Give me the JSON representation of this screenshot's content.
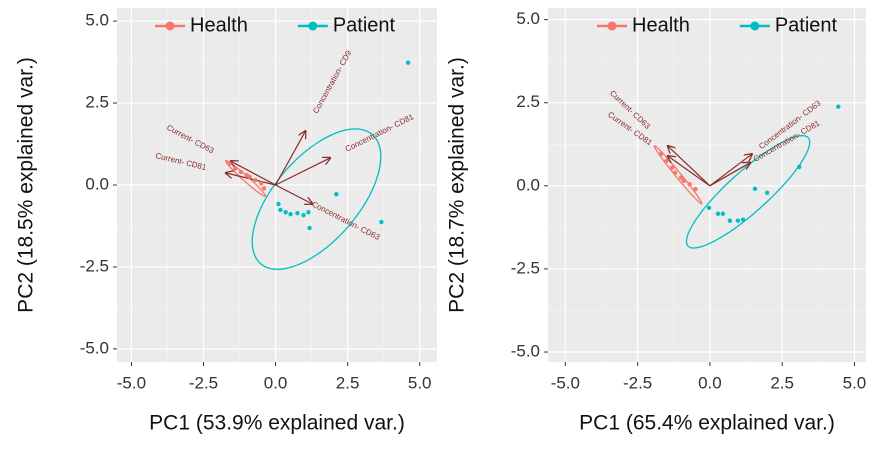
{
  "chart_data": [
    {
      "type": "scatter",
      "x_label": "PC1 (53.9% explained var.)",
      "y_label": "PC2 (18.5% explained var.)",
      "xlim": [
        -5.5,
        5.6
      ],
      "ylim": [
        -5.4,
        5.4
      ],
      "xticks": [
        {
          "value": -5,
          "label": "-5.0"
        },
        {
          "value": -2.5,
          "label": "-2.5"
        },
        {
          "value": 0,
          "label": "0.0"
        },
        2.5,
        {
          "value": 5,
          "label": "5.0"
        }
      ],
      "yticks": [
        {
          "value": -5,
          "label": "-5.0"
        },
        {
          "value": -2.5,
          "label": "-2.5"
        },
        {
          "value": 0,
          "label": "0.0"
        },
        2.5,
        {
          "value": 5,
          "label": "5.0"
        }
      ],
      "grid": true,
      "legend": "top",
      "loading_color": "#8b2a2a",
      "series": [
        {
          "name": "Health",
          "color": "#f8766d",
          "x": [
            -1.6,
            -1.4,
            -1.2,
            -1.0,
            -0.9,
            -0.7,
            -0.5,
            -0.4
          ],
          "y": [
            0.65,
            0.5,
            0.4,
            0.3,
            0.25,
            0.15,
            0.05,
            -0.1
          ],
          "ellipse": {
            "center": [
              -1.04,
              0.2
            ],
            "axis1": [
              0.69,
              -0.54
            ],
            "axis2": [
              0.05,
              0.07
            ]
          }
        },
        {
          "name": "Patient",
          "color": "#00bfc4",
          "x": [
            4.6,
            2.11,
            3.67,
            0.1,
            0.17,
            0.35,
            0.52,
            0.76,
            0.97,
            1.14,
            1.18
          ],
          "y": [
            3.73,
            -0.28,
            -1.13,
            -0.58,
            -0.76,
            -0.83,
            -0.89,
            -0.86,
            -0.92,
            -0.83,
            -1.31
          ],
          "ellipse": {
            "center": [
              1.42,
              -0.43
            ],
            "axis1": [
              1.94,
              1.97
            ],
            "axis2": [
              1.1,
              -0.84
            ]
          }
        }
      ],
      "loadings": [
        {
          "label": "Concentration- CD9",
          "x": 1.04,
          "y": 1.65
        },
        {
          "label": "Concentration- CD81",
          "x": 1.9,
          "y": 0.83
        },
        {
          "label": "Concentration- CD63",
          "x": 1.28,
          "y": -0.58
        },
        {
          "label": "Current- CD63",
          "x": -1.56,
          "y": 0.73
        },
        {
          "label": "Current- CD81",
          "x": -1.73,
          "y": 0.37
        }
      ]
    },
    {
      "type": "scatter",
      "x_label": "PC1 (65.4% explained var.)",
      "y_label": "PC2 (18.7% explained var.)",
      "xlim": [
        -5.6,
        5.4
      ],
      "ylim": [
        -5.3,
        5.35
      ],
      "xticks": [
        {
          "value": -5,
          "label": "-5.0"
        },
        {
          "value": -2.5,
          "label": "-2.5"
        },
        {
          "value": 0,
          "label": "0.0"
        },
        2.5,
        {
          "value": 5,
          "label": "5.0"
        }
      ],
      "yticks": [
        {
          "value": -5,
          "label": "-5.0"
        },
        {
          "value": -2.5,
          "label": "-2.5"
        },
        {
          "value": 0,
          "label": "0.0"
        },
        2.5,
        {
          "value": 5,
          "label": "5.0"
        }
      ],
      "grid": true,
      "legend": "top",
      "loading_color": "#8b2a2a",
      "series": [
        {
          "name": "Health",
          "color": "#f8766d",
          "x": [
            -1.7,
            -1.5,
            -1.3,
            -1.2,
            -1.0,
            -0.9,
            -0.7,
            -0.5
          ],
          "y": [
            0.95,
            0.75,
            0.55,
            0.4,
            0.25,
            0.15,
            0.05,
            -0.1
          ],
          "ellipse": {
            "center": [
              -1.1,
              0.33
            ],
            "axis1": [
              0.82,
              -0.87
            ],
            "axis2": [
              0.06,
              0.06
            ]
          }
        },
        {
          "name": "Patient",
          "color": "#00bfc4",
          "x": [
            4.44,
            3.09,
            1.56,
            1.98,
            -0.03,
            0.28,
            0.45,
            0.69,
            0.97,
            1.15
          ],
          "y": [
            2.38,
            0.57,
            -0.09,
            -0.21,
            -0.66,
            -0.84,
            -0.84,
            -1.05,
            -1.05,
            -1.02
          ],
          "ellipse": {
            "center": [
              1.32,
              -0.18
            ],
            "axis1": [
              2.08,
              1.63
            ],
            "axis2": [
              0.47,
              -0.45
            ]
          }
        }
      ],
      "loadings": [
        {
          "label": "Concentration- CD63",
          "x": 1.46,
          "y": 0.96
        },
        {
          "label": "Concentration- CD81",
          "x": 1.4,
          "y": 0.7
        },
        {
          "label": "Current- CD63",
          "x": -1.46,
          "y": 1.2
        },
        {
          "label": "Current- CD81",
          "x": -1.46,
          "y": 0.9
        }
      ]
    }
  ]
}
